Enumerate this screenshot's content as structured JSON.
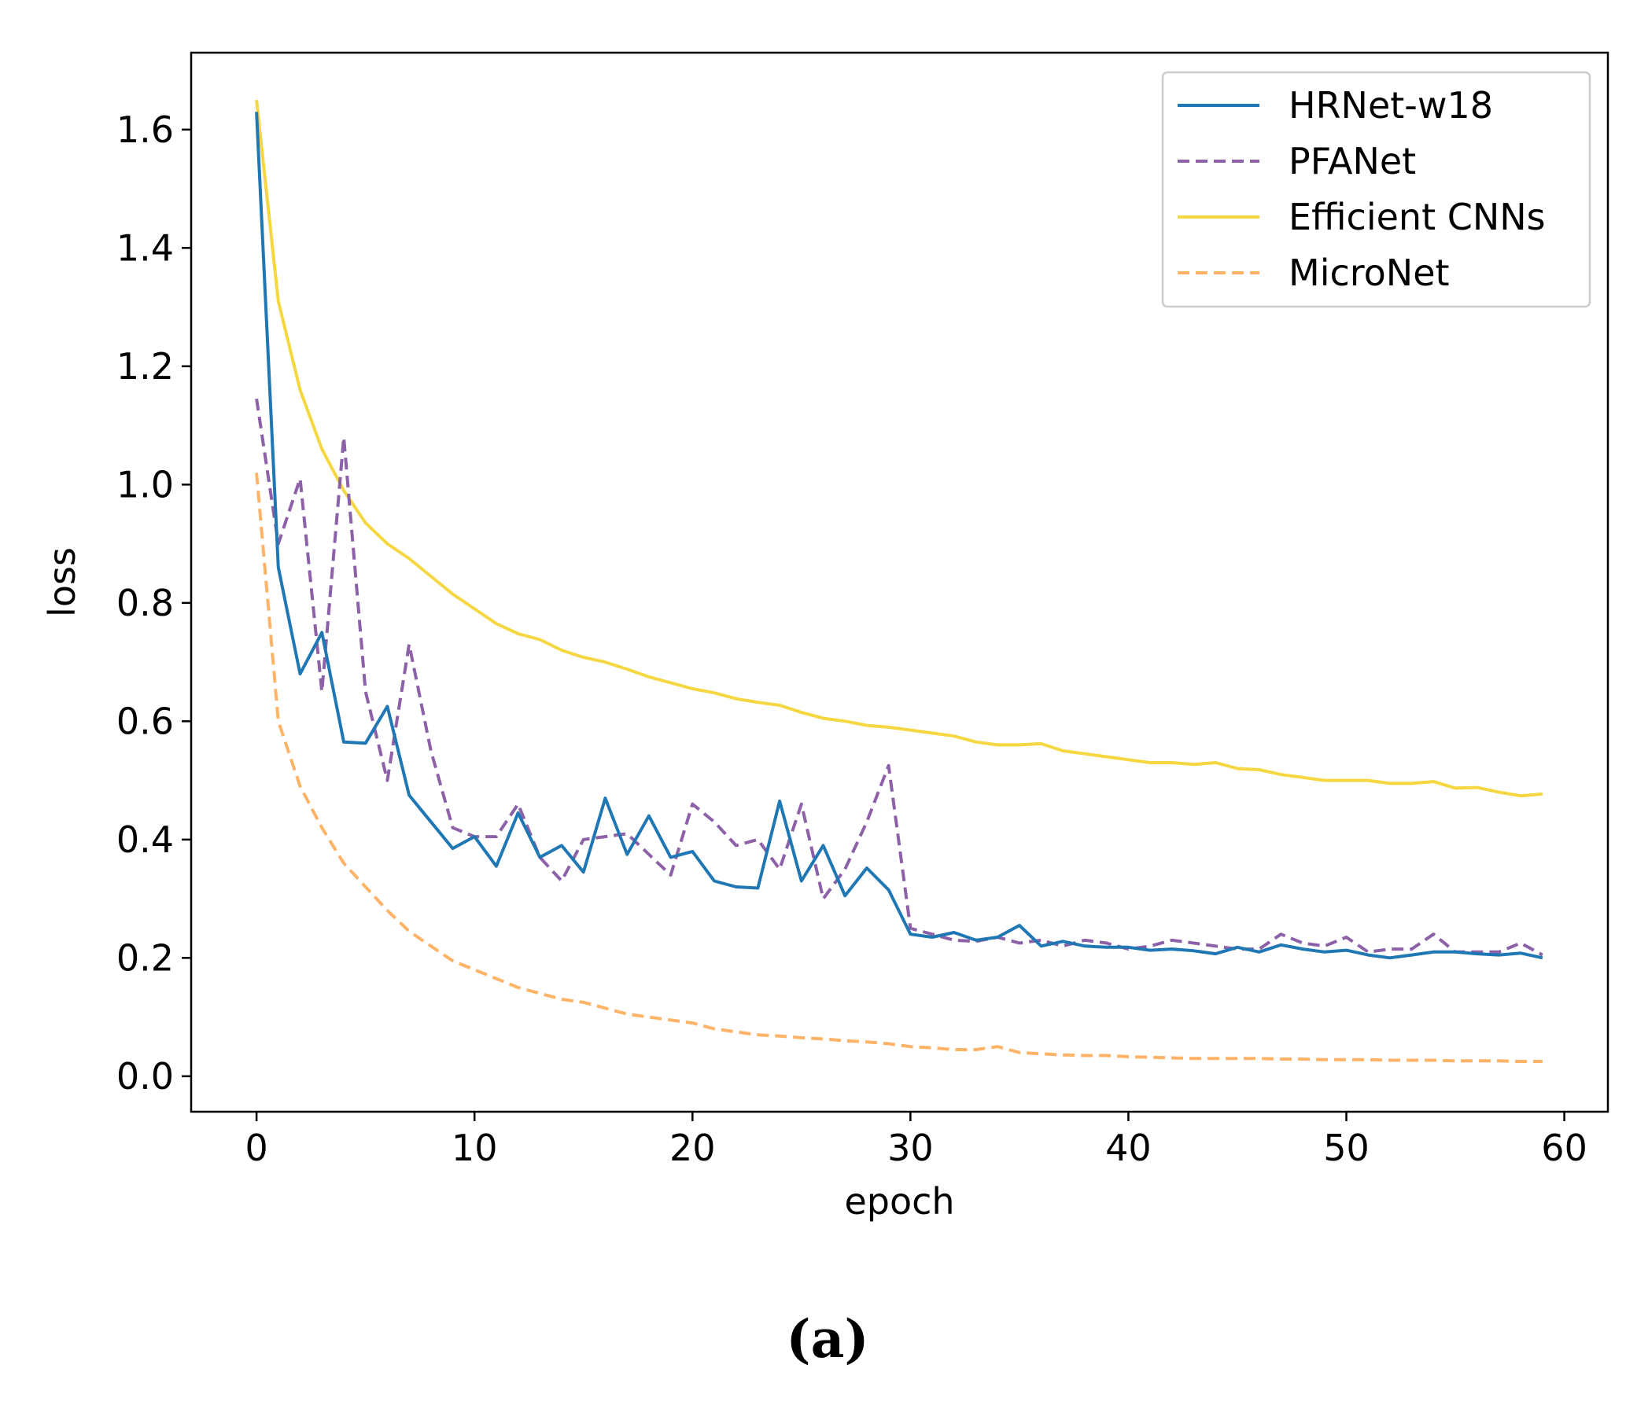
{
  "chart_data": {
    "type": "line",
    "title": "",
    "xlabel": "epoch",
    "ylabel": "loss",
    "xlim": [
      -3,
      62
    ],
    "ylim": [
      -0.06,
      1.73
    ],
    "xticks": [
      0,
      10,
      20,
      30,
      40,
      50,
      60
    ],
    "yticks": [
      0.0,
      0.2,
      0.4,
      0.6,
      0.8,
      1.0,
      1.2,
      1.4,
      1.6
    ],
    "ytick_labels": [
      "0.0",
      "0.2",
      "0.4",
      "0.6",
      "0.8",
      "1.0",
      "1.2",
      "1.4",
      "1.6"
    ],
    "legend_position": "top-right",
    "grid": false,
    "caption": "(a)",
    "x": [
      0,
      1,
      2,
      3,
      4,
      5,
      6,
      7,
      8,
      9,
      10,
      11,
      12,
      13,
      14,
      15,
      16,
      17,
      18,
      19,
      20,
      21,
      22,
      23,
      24,
      25,
      26,
      27,
      28,
      29,
      30,
      31,
      32,
      33,
      34,
      35,
      36,
      37,
      38,
      39,
      40,
      41,
      42,
      43,
      44,
      45,
      46,
      47,
      48,
      49,
      50,
      51,
      52,
      53,
      54,
      55,
      56,
      57,
      58,
      59
    ],
    "series": [
      {
        "name": "HRNet-w18",
        "color": "#1f77b4",
        "dash": "solid",
        "values": [
          1.63,
          0.86,
          0.68,
          0.75,
          0.565,
          0.563,
          0.625,
          0.475,
          0.43,
          0.385,
          0.405,
          0.355,
          0.445,
          0.37,
          0.39,
          0.345,
          0.47,
          0.375,
          0.44,
          0.37,
          0.38,
          0.33,
          0.32,
          0.318,
          0.465,
          0.33,
          0.39,
          0.305,
          0.352,
          0.315,
          0.24,
          0.235,
          0.243,
          0.23,
          0.235,
          0.255,
          0.22,
          0.228,
          0.22,
          0.218,
          0.218,
          0.213,
          0.215,
          0.212,
          0.207,
          0.218,
          0.21,
          0.222,
          0.215,
          0.21,
          0.213,
          0.205,
          0.2,
          0.205,
          0.21,
          0.21,
          0.207,
          0.205,
          0.208,
          0.2
        ]
      },
      {
        "name": "PFANet",
        "color": "#8c61a8",
        "dash": "dashed",
        "values": [
          1.145,
          0.9,
          1.01,
          0.65,
          1.08,
          0.65,
          0.5,
          0.73,
          0.55,
          0.42,
          0.405,
          0.405,
          0.46,
          0.37,
          0.33,
          0.4,
          0.405,
          0.41,
          0.375,
          0.34,
          0.46,
          0.43,
          0.39,
          0.4,
          0.35,
          0.46,
          0.3,
          0.35,
          0.43,
          0.525,
          0.25,
          0.24,
          0.23,
          0.228,
          0.235,
          0.225,
          0.23,
          0.22,
          0.23,
          0.225,
          0.215,
          0.22,
          0.23,
          0.225,
          0.22,
          0.215,
          0.215,
          0.24,
          0.225,
          0.22,
          0.235,
          0.21,
          0.215,
          0.215,
          0.24,
          0.21,
          0.21,
          0.21,
          0.225,
          0.205
        ]
      },
      {
        "name": "Efficient CNNs",
        "color": "#f5d742",
        "dash": "solid",
        "values": [
          1.65,
          1.31,
          1.16,
          1.06,
          0.99,
          0.935,
          0.9,
          0.875,
          0.845,
          0.815,
          0.79,
          0.765,
          0.748,
          0.738,
          0.72,
          0.708,
          0.7,
          0.688,
          0.675,
          0.665,
          0.655,
          0.648,
          0.638,
          0.632,
          0.627,
          0.615,
          0.605,
          0.6,
          0.593,
          0.59,
          0.585,
          0.58,
          0.575,
          0.565,
          0.56,
          0.56,
          0.562,
          0.55,
          0.545,
          0.54,
          0.535,
          0.53,
          0.53,
          0.527,
          0.53,
          0.52,
          0.518,
          0.51,
          0.505,
          0.5,
          0.5,
          0.5,
          0.495,
          0.495,
          0.498,
          0.487,
          0.488,
          0.48,
          0.474,
          0.477
        ]
      },
      {
        "name": "MicroNet",
        "color": "#ffb366",
        "dash": "dashed",
        "values": [
          1.02,
          0.6,
          0.49,
          0.42,
          0.36,
          0.32,
          0.28,
          0.245,
          0.22,
          0.195,
          0.18,
          0.165,
          0.15,
          0.14,
          0.13,
          0.125,
          0.115,
          0.105,
          0.1,
          0.095,
          0.09,
          0.08,
          0.075,
          0.07,
          0.068,
          0.065,
          0.063,
          0.06,
          0.058,
          0.055,
          0.05,
          0.048,
          0.045,
          0.045,
          0.05,
          0.04,
          0.038,
          0.036,
          0.035,
          0.035,
          0.033,
          0.032,
          0.031,
          0.03,
          0.03,
          0.03,
          0.03,
          0.029,
          0.029,
          0.028,
          0.028,
          0.028,
          0.027,
          0.027,
          0.027,
          0.026,
          0.026,
          0.026,
          0.025,
          0.025
        ]
      }
    ]
  }
}
